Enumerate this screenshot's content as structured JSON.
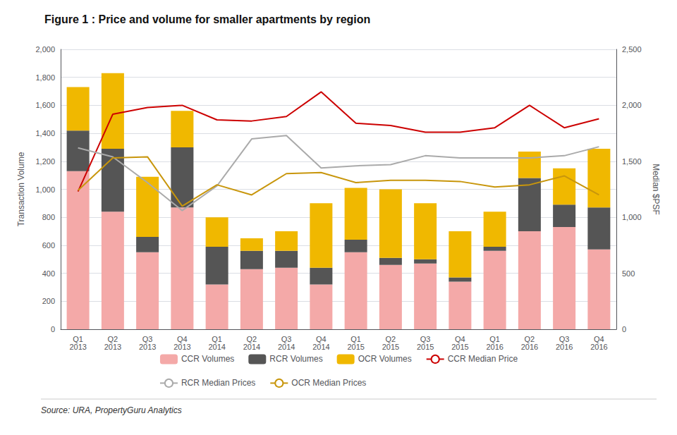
{
  "chart_data": {
    "type": "bar",
    "title": "Figure 1 : Price and volume for smaller apartments by region",
    "annotations": [
      "Source: URA, PropertyGuru Analytics"
    ],
    "categories": [
      "Q1\n2013",
      "Q2\n2013",
      "Q3\n2013",
      "Q4\n2013",
      "Q1\n2014",
      "Q2\n2014",
      "Q3\n2014",
      "Q4\n2014",
      "Q1\n2015",
      "Q2\n2015",
      "Q3\n2015",
      "Q4\n2015",
      "Q1\n2016",
      "Q2\n2016",
      "Q3\n2016",
      "Q4\n2016"
    ],
    "series": [
      {
        "name": "CCR Volumes",
        "type": "bar",
        "color": "#f4a9a8",
        "values": [
          1130,
          840,
          550,
          870,
          320,
          430,
          440,
          320,
          550,
          460,
          470,
          340,
          560,
          700,
          730,
          570
        ]
      },
      {
        "name": "RCR Volumes",
        "type": "bar",
        "color": "#555555",
        "values": [
          290,
          450,
          110,
          430,
          270,
          130,
          120,
          120,
          90,
          50,
          30,
          30,
          30,
          380,
          160,
          300
        ]
      },
      {
        "name": "OCR Volumes",
        "type": "bar",
        "color": "#f0b800",
        "values": [
          310,
          540,
          430,
          260,
          210,
          90,
          140,
          460,
          370,
          490,
          400,
          330,
          250,
          190,
          260,
          420
        ]
      },
      {
        "name": "CCR Median Price",
        "type": "line",
        "axis": "y2",
        "color": "#cc0000",
        "values": [
          1230,
          1920,
          1980,
          2000,
          1870,
          1860,
          1900,
          2120,
          1840,
          1820,
          1760,
          1760,
          1800,
          2000,
          1800,
          1880
        ]
      },
      {
        "name": "RCR Median Prices",
        "type": "line",
        "axis": "y2",
        "color": "#aaaaaa",
        "values": [
          1620,
          1540,
          1310,
          1060,
          1280,
          1700,
          1730,
          1440,
          1460,
          1470,
          1550,
          1530,
          1530,
          1530,
          1550,
          1630
        ]
      },
      {
        "name": "OCR Median Prices",
        "type": "line",
        "axis": "y2",
        "color": "#c8960c",
        "values": [
          1240,
          1530,
          1540,
          1100,
          1290,
          1200,
          1390,
          1400,
          1310,
          1330,
          1330,
          1320,
          1270,
          1290,
          1370,
          1200
        ]
      }
    ],
    "stacked": true,
    "ylabel": "Transaction Volume",
    "y2label": "Median $PSF",
    "ylim": [
      0,
      2000
    ],
    "yticks": [
      0,
      200,
      400,
      600,
      800,
      1000,
      1200,
      1400,
      1600,
      1800,
      2000
    ],
    "y2lim": [
      0,
      2500
    ],
    "y2ticks": [
      0,
      500,
      1000,
      1500,
      2000,
      2500
    ],
    "grid": true,
    "legend": "bottom"
  }
}
